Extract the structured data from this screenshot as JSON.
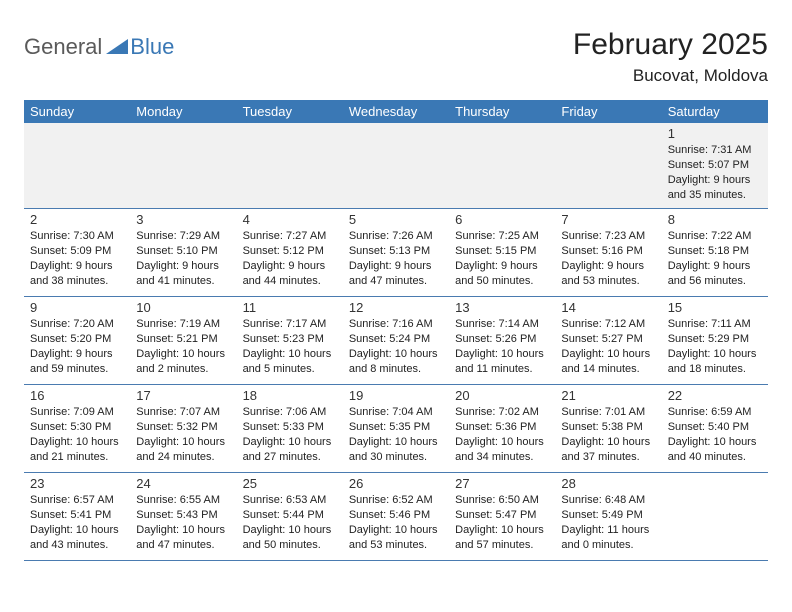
{
  "logo": {
    "part1": "General",
    "part2": "Blue"
  },
  "title": "February 2025",
  "location": "Bucovat, Moldova",
  "colors": {
    "header_bg": "#3a78b5",
    "header_fg": "#ffffff",
    "row_border": "#4a7bb0",
    "first_row_bg": "#f1f1f1",
    "logo_gray": "#5a5a5a",
    "logo_blue": "#3a78b5"
  },
  "weekdays": [
    "Sunday",
    "Monday",
    "Tuesday",
    "Wednesday",
    "Thursday",
    "Friday",
    "Saturday"
  ],
  "weeks": [
    [
      null,
      null,
      null,
      null,
      null,
      null,
      {
        "d": "1",
        "sr": "7:31 AM",
        "ss": "5:07 PM",
        "dl": "9 hours and 35 minutes."
      }
    ],
    [
      {
        "d": "2",
        "sr": "7:30 AM",
        "ss": "5:09 PM",
        "dl": "9 hours and 38 minutes."
      },
      {
        "d": "3",
        "sr": "7:29 AM",
        "ss": "5:10 PM",
        "dl": "9 hours and 41 minutes."
      },
      {
        "d": "4",
        "sr": "7:27 AM",
        "ss": "5:12 PM",
        "dl": "9 hours and 44 minutes."
      },
      {
        "d": "5",
        "sr": "7:26 AM",
        "ss": "5:13 PM",
        "dl": "9 hours and 47 minutes."
      },
      {
        "d": "6",
        "sr": "7:25 AM",
        "ss": "5:15 PM",
        "dl": "9 hours and 50 minutes."
      },
      {
        "d": "7",
        "sr": "7:23 AM",
        "ss": "5:16 PM",
        "dl": "9 hours and 53 minutes."
      },
      {
        "d": "8",
        "sr": "7:22 AM",
        "ss": "5:18 PM",
        "dl": "9 hours and 56 minutes."
      }
    ],
    [
      {
        "d": "9",
        "sr": "7:20 AM",
        "ss": "5:20 PM",
        "dl": "9 hours and 59 minutes."
      },
      {
        "d": "10",
        "sr": "7:19 AM",
        "ss": "5:21 PM",
        "dl": "10 hours and 2 minutes."
      },
      {
        "d": "11",
        "sr": "7:17 AM",
        "ss": "5:23 PM",
        "dl": "10 hours and 5 minutes."
      },
      {
        "d": "12",
        "sr": "7:16 AM",
        "ss": "5:24 PM",
        "dl": "10 hours and 8 minutes."
      },
      {
        "d": "13",
        "sr": "7:14 AM",
        "ss": "5:26 PM",
        "dl": "10 hours and 11 minutes."
      },
      {
        "d": "14",
        "sr": "7:12 AM",
        "ss": "5:27 PM",
        "dl": "10 hours and 14 minutes."
      },
      {
        "d": "15",
        "sr": "7:11 AM",
        "ss": "5:29 PM",
        "dl": "10 hours and 18 minutes."
      }
    ],
    [
      {
        "d": "16",
        "sr": "7:09 AM",
        "ss": "5:30 PM",
        "dl": "10 hours and 21 minutes."
      },
      {
        "d": "17",
        "sr": "7:07 AM",
        "ss": "5:32 PM",
        "dl": "10 hours and 24 minutes."
      },
      {
        "d": "18",
        "sr": "7:06 AM",
        "ss": "5:33 PM",
        "dl": "10 hours and 27 minutes."
      },
      {
        "d": "19",
        "sr": "7:04 AM",
        "ss": "5:35 PM",
        "dl": "10 hours and 30 minutes."
      },
      {
        "d": "20",
        "sr": "7:02 AM",
        "ss": "5:36 PM",
        "dl": "10 hours and 34 minutes."
      },
      {
        "d": "21",
        "sr": "7:01 AM",
        "ss": "5:38 PM",
        "dl": "10 hours and 37 minutes."
      },
      {
        "d": "22",
        "sr": "6:59 AM",
        "ss": "5:40 PM",
        "dl": "10 hours and 40 minutes."
      }
    ],
    [
      {
        "d": "23",
        "sr": "6:57 AM",
        "ss": "5:41 PM",
        "dl": "10 hours and 43 minutes."
      },
      {
        "d": "24",
        "sr": "6:55 AM",
        "ss": "5:43 PM",
        "dl": "10 hours and 47 minutes."
      },
      {
        "d": "25",
        "sr": "6:53 AM",
        "ss": "5:44 PM",
        "dl": "10 hours and 50 minutes."
      },
      {
        "d": "26",
        "sr": "6:52 AM",
        "ss": "5:46 PM",
        "dl": "10 hours and 53 minutes."
      },
      {
        "d": "27",
        "sr": "6:50 AM",
        "ss": "5:47 PM",
        "dl": "10 hours and 57 minutes."
      },
      {
        "d": "28",
        "sr": "6:48 AM",
        "ss": "5:49 PM",
        "dl": "11 hours and 0 minutes."
      },
      null
    ]
  ],
  "labels": {
    "sunrise": "Sunrise:",
    "sunset": "Sunset:",
    "daylight": "Daylight:"
  }
}
